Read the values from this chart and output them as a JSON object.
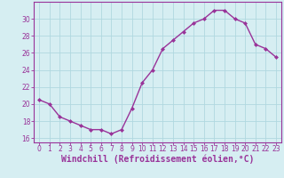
{
  "x": [
    0,
    1,
    2,
    3,
    4,
    5,
    6,
    7,
    8,
    9,
    10,
    11,
    12,
    13,
    14,
    15,
    16,
    17,
    18,
    19,
    20,
    21,
    22,
    23
  ],
  "y": [
    20.5,
    20.0,
    18.5,
    18.0,
    17.5,
    17.0,
    17.0,
    16.5,
    17.0,
    19.5,
    22.5,
    24.0,
    26.5,
    27.5,
    28.5,
    29.5,
    30.0,
    31.0,
    31.0,
    30.0,
    29.5,
    27.0,
    26.5,
    25.5
  ],
  "line_color": "#993399",
  "marker": "D",
  "marker_size": 2,
  "bg_color": "#d6eef2",
  "grid_color": "#b0d8e0",
  "xlabel": "Windchill (Refroidissement éolien,°C)",
  "xlabel_color": "#993399",
  "tick_color": "#993399",
  "spine_color": "#993399",
  "xlim": [
    -0.5,
    23.5
  ],
  "ylim": [
    15.5,
    32
  ],
  "yticks": [
    16,
    18,
    20,
    22,
    24,
    26,
    28,
    30
  ],
  "xticks": [
    0,
    1,
    2,
    3,
    4,
    5,
    6,
    7,
    8,
    9,
    10,
    11,
    12,
    13,
    14,
    15,
    16,
    17,
    18,
    19,
    20,
    21,
    22,
    23
  ],
  "tick_fontsize": 5.5,
  "xlabel_fontsize": 7,
  "line_width": 1.0
}
